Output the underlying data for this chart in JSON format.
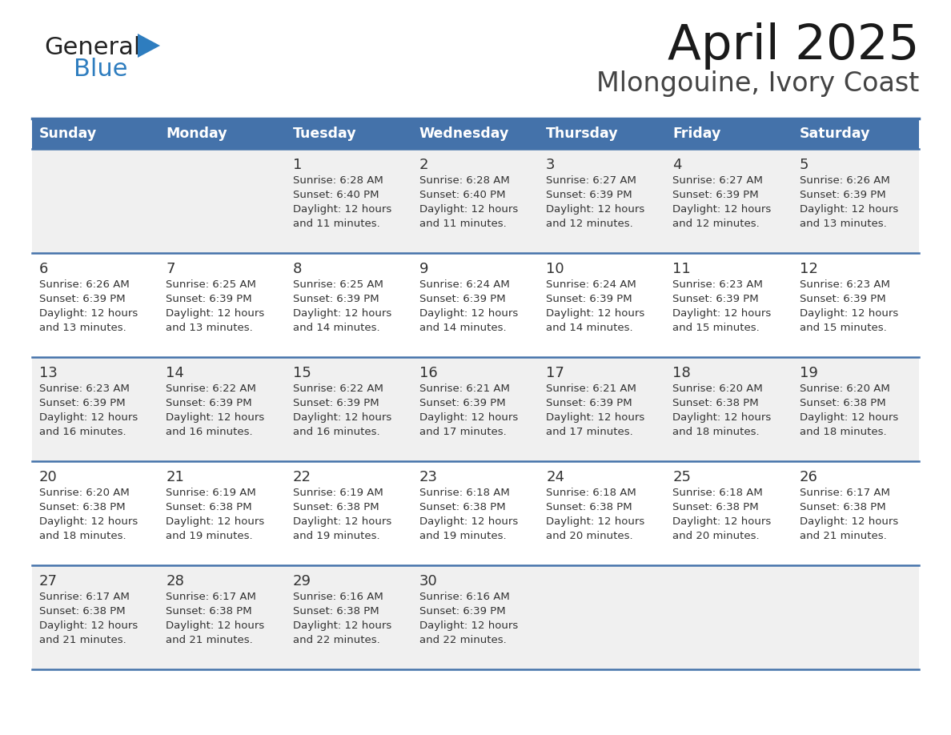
{
  "title": "April 2025",
  "subtitle": "Mlongouine, Ivory Coast",
  "header_bg": "#4472aa",
  "header_text_color": "#ffffff",
  "row_bg_light": "#f0f0f0",
  "row_bg_white": "#ffffff",
  "cell_text_color": "#333333",
  "separator_color": "#4472aa",
  "logo_general_color": "#222222",
  "logo_blue_color": "#2e7dbf",
  "logo_triangle_color": "#2e7dbf",
  "day_headers": [
    "Sunday",
    "Monday",
    "Tuesday",
    "Wednesday",
    "Thursday",
    "Friday",
    "Saturday"
  ],
  "days": [
    {
      "day": 1,
      "col": 2,
      "row": 0,
      "sunrise": "6:28 AM",
      "sunset": "6:40 PM",
      "daylight_min": "11 minutes."
    },
    {
      "day": 2,
      "col": 3,
      "row": 0,
      "sunrise": "6:28 AM",
      "sunset": "6:40 PM",
      "daylight_min": "11 minutes."
    },
    {
      "day": 3,
      "col": 4,
      "row": 0,
      "sunrise": "6:27 AM",
      "sunset": "6:39 PM",
      "daylight_min": "12 minutes."
    },
    {
      "day": 4,
      "col": 5,
      "row": 0,
      "sunrise": "6:27 AM",
      "sunset": "6:39 PM",
      "daylight_min": "12 minutes."
    },
    {
      "day": 5,
      "col": 6,
      "row": 0,
      "sunrise": "6:26 AM",
      "sunset": "6:39 PM",
      "daylight_min": "13 minutes."
    },
    {
      "day": 6,
      "col": 0,
      "row": 1,
      "sunrise": "6:26 AM",
      "sunset": "6:39 PM",
      "daylight_min": "13 minutes."
    },
    {
      "day": 7,
      "col": 1,
      "row": 1,
      "sunrise": "6:25 AM",
      "sunset": "6:39 PM",
      "daylight_min": "13 minutes."
    },
    {
      "day": 8,
      "col": 2,
      "row": 1,
      "sunrise": "6:25 AM",
      "sunset": "6:39 PM",
      "daylight_min": "14 minutes."
    },
    {
      "day": 9,
      "col": 3,
      "row": 1,
      "sunrise": "6:24 AM",
      "sunset": "6:39 PM",
      "daylight_min": "14 minutes."
    },
    {
      "day": 10,
      "col": 4,
      "row": 1,
      "sunrise": "6:24 AM",
      "sunset": "6:39 PM",
      "daylight_min": "14 minutes."
    },
    {
      "day": 11,
      "col": 5,
      "row": 1,
      "sunrise": "6:23 AM",
      "sunset": "6:39 PM",
      "daylight_min": "15 minutes."
    },
    {
      "day": 12,
      "col": 6,
      "row": 1,
      "sunrise": "6:23 AM",
      "sunset": "6:39 PM",
      "daylight_min": "15 minutes."
    },
    {
      "day": 13,
      "col": 0,
      "row": 2,
      "sunrise": "6:23 AM",
      "sunset": "6:39 PM",
      "daylight_min": "16 minutes."
    },
    {
      "day": 14,
      "col": 1,
      "row": 2,
      "sunrise": "6:22 AM",
      "sunset": "6:39 PM",
      "daylight_min": "16 minutes."
    },
    {
      "day": 15,
      "col": 2,
      "row": 2,
      "sunrise": "6:22 AM",
      "sunset": "6:39 PM",
      "daylight_min": "16 minutes."
    },
    {
      "day": 16,
      "col": 3,
      "row": 2,
      "sunrise": "6:21 AM",
      "sunset": "6:39 PM",
      "daylight_min": "17 minutes."
    },
    {
      "day": 17,
      "col": 4,
      "row": 2,
      "sunrise": "6:21 AM",
      "sunset": "6:39 PM",
      "daylight_min": "17 minutes."
    },
    {
      "day": 18,
      "col": 5,
      "row": 2,
      "sunrise": "6:20 AM",
      "sunset": "6:38 PM",
      "daylight_min": "18 minutes."
    },
    {
      "day": 19,
      "col": 6,
      "row": 2,
      "sunrise": "6:20 AM",
      "sunset": "6:38 PM",
      "daylight_min": "18 minutes."
    },
    {
      "day": 20,
      "col": 0,
      "row": 3,
      "sunrise": "6:20 AM",
      "sunset": "6:38 PM",
      "daylight_min": "18 minutes."
    },
    {
      "day": 21,
      "col": 1,
      "row": 3,
      "sunrise": "6:19 AM",
      "sunset": "6:38 PM",
      "daylight_min": "19 minutes."
    },
    {
      "day": 22,
      "col": 2,
      "row": 3,
      "sunrise": "6:19 AM",
      "sunset": "6:38 PM",
      "daylight_min": "19 minutes."
    },
    {
      "day": 23,
      "col": 3,
      "row": 3,
      "sunrise": "6:18 AM",
      "sunset": "6:38 PM",
      "daylight_min": "19 minutes."
    },
    {
      "day": 24,
      "col": 4,
      "row": 3,
      "sunrise": "6:18 AM",
      "sunset": "6:38 PM",
      "daylight_min": "20 minutes."
    },
    {
      "day": 25,
      "col": 5,
      "row": 3,
      "sunrise": "6:18 AM",
      "sunset": "6:38 PM",
      "daylight_min": "20 minutes."
    },
    {
      "day": 26,
      "col": 6,
      "row": 3,
      "sunrise": "6:17 AM",
      "sunset": "6:38 PM",
      "daylight_min": "21 minutes."
    },
    {
      "day": 27,
      "col": 0,
      "row": 4,
      "sunrise": "6:17 AM",
      "sunset": "6:38 PM",
      "daylight_min": "21 minutes."
    },
    {
      "day": 28,
      "col": 1,
      "row": 4,
      "sunrise": "6:17 AM",
      "sunset": "6:38 PM",
      "daylight_min": "21 minutes."
    },
    {
      "day": 29,
      "col": 2,
      "row": 4,
      "sunrise": "6:16 AM",
      "sunset": "6:38 PM",
      "daylight_min": "22 minutes."
    },
    {
      "day": 30,
      "col": 3,
      "row": 4,
      "sunrise": "6:16 AM",
      "sunset": "6:39 PM",
      "daylight_min": "22 minutes."
    }
  ]
}
